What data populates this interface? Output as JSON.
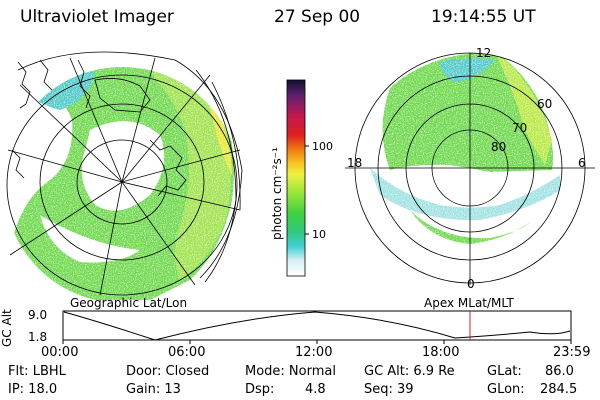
{
  "header": {
    "instrument": "Ultraviolet Imager",
    "date": "27 Sep 00",
    "time": "19:14:55 UT"
  },
  "colorbar": {
    "label": "photon cm⁻²s⁻¹",
    "ticks": [
      "100",
      "10"
    ]
  },
  "geo_panel": {
    "label": "Geographic Lat/Lon"
  },
  "polar_panel": {
    "label": "Apex  MLat/MLT",
    "mlt_labels": {
      "top": "12",
      "left": "18",
      "right": "6",
      "bottom": "0"
    },
    "lat_labels": [
      "60",
      "70",
      "80"
    ]
  },
  "altitude_plot": {
    "axis_title": "GC Alt",
    "y_ticks": [
      "9.0",
      "1.8"
    ],
    "x_ticks": [
      "00:00",
      "06:00",
      "12:00",
      "18:00",
      "23:59"
    ],
    "current_time_marker_hours": 19.25
  },
  "info": {
    "flt": "Flt: LBHL",
    "ip": "IP: 18.0",
    "door": "Door: Closed",
    "gain": "Gain: 13",
    "mode": "Mode: Normal",
    "dsp_label": "Dsp:",
    "dsp_value": "4.8",
    "gc_alt": "GC Alt: 6.9 Re",
    "seq": "Seq: 39",
    "glat_label": "GLat:",
    "glat_value": "86.0",
    "glon_label": "GLon:",
    "glon_value": "284.5"
  },
  "colors": {
    "aurora_low": "#6cd84a",
    "aurora_mid": "#b4ea3c",
    "aurora_high": "#e8e832",
    "sparse": "#4ec8c8",
    "marker": "#cc2020"
  }
}
